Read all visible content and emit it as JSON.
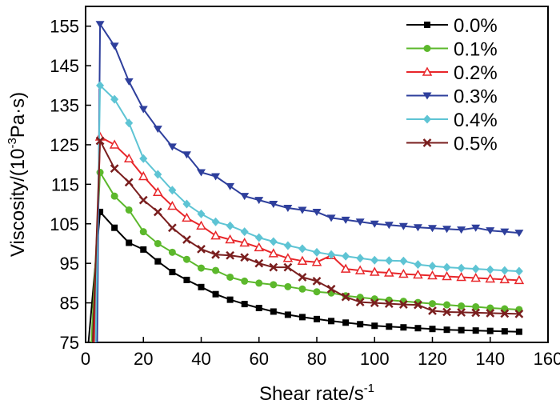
{
  "chart_data": {
    "type": "line",
    "title": "",
    "xlabel": "Shear rate/s",
    "xlabel_sup": "-1",
    "ylabel_main": "Viscosity/(10",
    "ylabel_sup": "-3",
    "ylabel_tail": "Pa·s)",
    "xlim": [
      0,
      160
    ],
    "ylim": [
      75,
      160
    ],
    "xticks": [
      0,
      20,
      40,
      60,
      80,
      100,
      120,
      140,
      160
    ],
    "yticks": [
      75,
      85,
      95,
      105,
      115,
      125,
      135,
      145,
      155
    ],
    "legend_position": "top-right",
    "series": [
      {
        "name": "0.0%",
        "color": "#000000",
        "marker": "square",
        "x": [
          1,
          5,
          10,
          15,
          20,
          25,
          30,
          35,
          40,
          45,
          50,
          55,
          60,
          65,
          70,
          75,
          80,
          85,
          90,
          95,
          100,
          105,
          110,
          115,
          120,
          125,
          130,
          135,
          140,
          145,
          150
        ],
        "y": [
          75,
          108,
          104,
          100.2,
          98.5,
          95.5,
          92.8,
          90.8,
          89,
          87.2,
          85.8,
          84.7,
          83.7,
          82.8,
          82,
          81.4,
          80.9,
          80.4,
          80,
          79.6,
          79.2,
          79,
          78.8,
          78.6,
          78.4,
          78.2,
          78.1,
          78,
          77.9,
          77.8,
          77.7
        ]
      },
      {
        "name": "0.1%",
        "color": "#5cb82c",
        "marker": "circle",
        "x": [
          2,
          5,
          10,
          15,
          20,
          25,
          30,
          35,
          40,
          45,
          50,
          55,
          60,
          65,
          70,
          75,
          80,
          85,
          90,
          95,
          100,
          105,
          110,
          115,
          120,
          125,
          130,
          135,
          140,
          145,
          150
        ],
        "y": [
          75,
          118,
          112,
          108.5,
          103,
          100,
          97.8,
          96,
          93.8,
          93.2,
          91.5,
          90.5,
          90,
          89.6,
          89.1,
          88.5,
          87.8,
          87.5,
          86.8,
          86.4,
          86,
          85.7,
          85.4,
          85.1,
          84.8,
          84.5,
          84.2,
          84,
          83.7,
          83.5,
          83.3
        ]
      },
      {
        "name": "0.2%",
        "color": "#e8262a",
        "marker": "triangle-up",
        "x": [
          3,
          5,
          10,
          15,
          20,
          25,
          30,
          35,
          40,
          45,
          50,
          55,
          60,
          65,
          70,
          75,
          80,
          85,
          90,
          95,
          100,
          105,
          110,
          115,
          120,
          125,
          130,
          135,
          140,
          145,
          150
        ],
        "y": [
          75,
          127,
          125,
          121.5,
          117,
          113,
          109.5,
          106.5,
          104.5,
          102,
          101,
          100.2,
          99,
          97.5,
          96.3,
          95.6,
          95.3,
          97,
          93.6,
          93.2,
          92.8,
          92.6,
          92.3,
          92.1,
          91.9,
          91.7,
          91.5,
          91.3,
          91.1,
          90.9,
          90.7
        ]
      },
      {
        "name": "0.3%",
        "color": "#2e3f9c",
        "marker": "triangle-down",
        "x": [
          4,
          5,
          10,
          15,
          20,
          25,
          30,
          35,
          40,
          45,
          50,
          55,
          60,
          65,
          70,
          75,
          80,
          85,
          90,
          95,
          100,
          105,
          110,
          115,
          120,
          125,
          130,
          135,
          140,
          145,
          150
        ],
        "y": [
          75,
          155.5,
          150,
          141,
          134,
          129,
          124.5,
          122.5,
          118,
          117,
          114.5,
          112,
          111,
          110,
          109,
          108.5,
          108,
          106.5,
          106,
          105.5,
          105,
          104.7,
          104.4,
          104.1,
          103.9,
          103.7,
          103.5,
          104,
          103.3,
          103,
          102.7
        ]
      },
      {
        "name": "0.4%",
        "color": "#5ec4d4",
        "marker": "diamond",
        "x": [
          3.5,
          5,
          10,
          15,
          20,
          25,
          30,
          35,
          40,
          45,
          50,
          55,
          60,
          65,
          70,
          75,
          80,
          85,
          90,
          95,
          100,
          105,
          110,
          115,
          120,
          125,
          130,
          135,
          140,
          145,
          150
        ],
        "y": [
          75,
          140,
          136.5,
          130.5,
          121.5,
          117.5,
          113.5,
          110,
          107.5,
          105.5,
          104.5,
          103,
          101.5,
          100.5,
          99.5,
          98.7,
          97.8,
          97.2,
          96.8,
          96.3,
          95.8,
          95.7,
          95.6,
          94.7,
          94.3,
          94,
          93.8,
          93.6,
          93.4,
          93.2,
          93
        ]
      },
      {
        "name": "0.5%",
        "color": "#7a1f1f",
        "marker": "x",
        "x": [
          2.5,
          5,
          10,
          15,
          20,
          25,
          30,
          35,
          40,
          45,
          50,
          55,
          60,
          65,
          70,
          75,
          80,
          85,
          90,
          95,
          100,
          105,
          110,
          115,
          120,
          125,
          130,
          135,
          140,
          145,
          150
        ],
        "y": [
          75,
          126,
          119,
          115.5,
          111,
          108,
          104,
          101,
          98.6,
          97.2,
          97,
          96.5,
          95,
          94,
          94,
          91.5,
          90.5,
          88.5,
          86.5,
          85.2,
          85,
          84.8,
          84.6,
          84.5,
          83,
          82.7,
          82.6,
          82.5,
          82.4,
          82.3,
          82.2
        ]
      }
    ]
  }
}
